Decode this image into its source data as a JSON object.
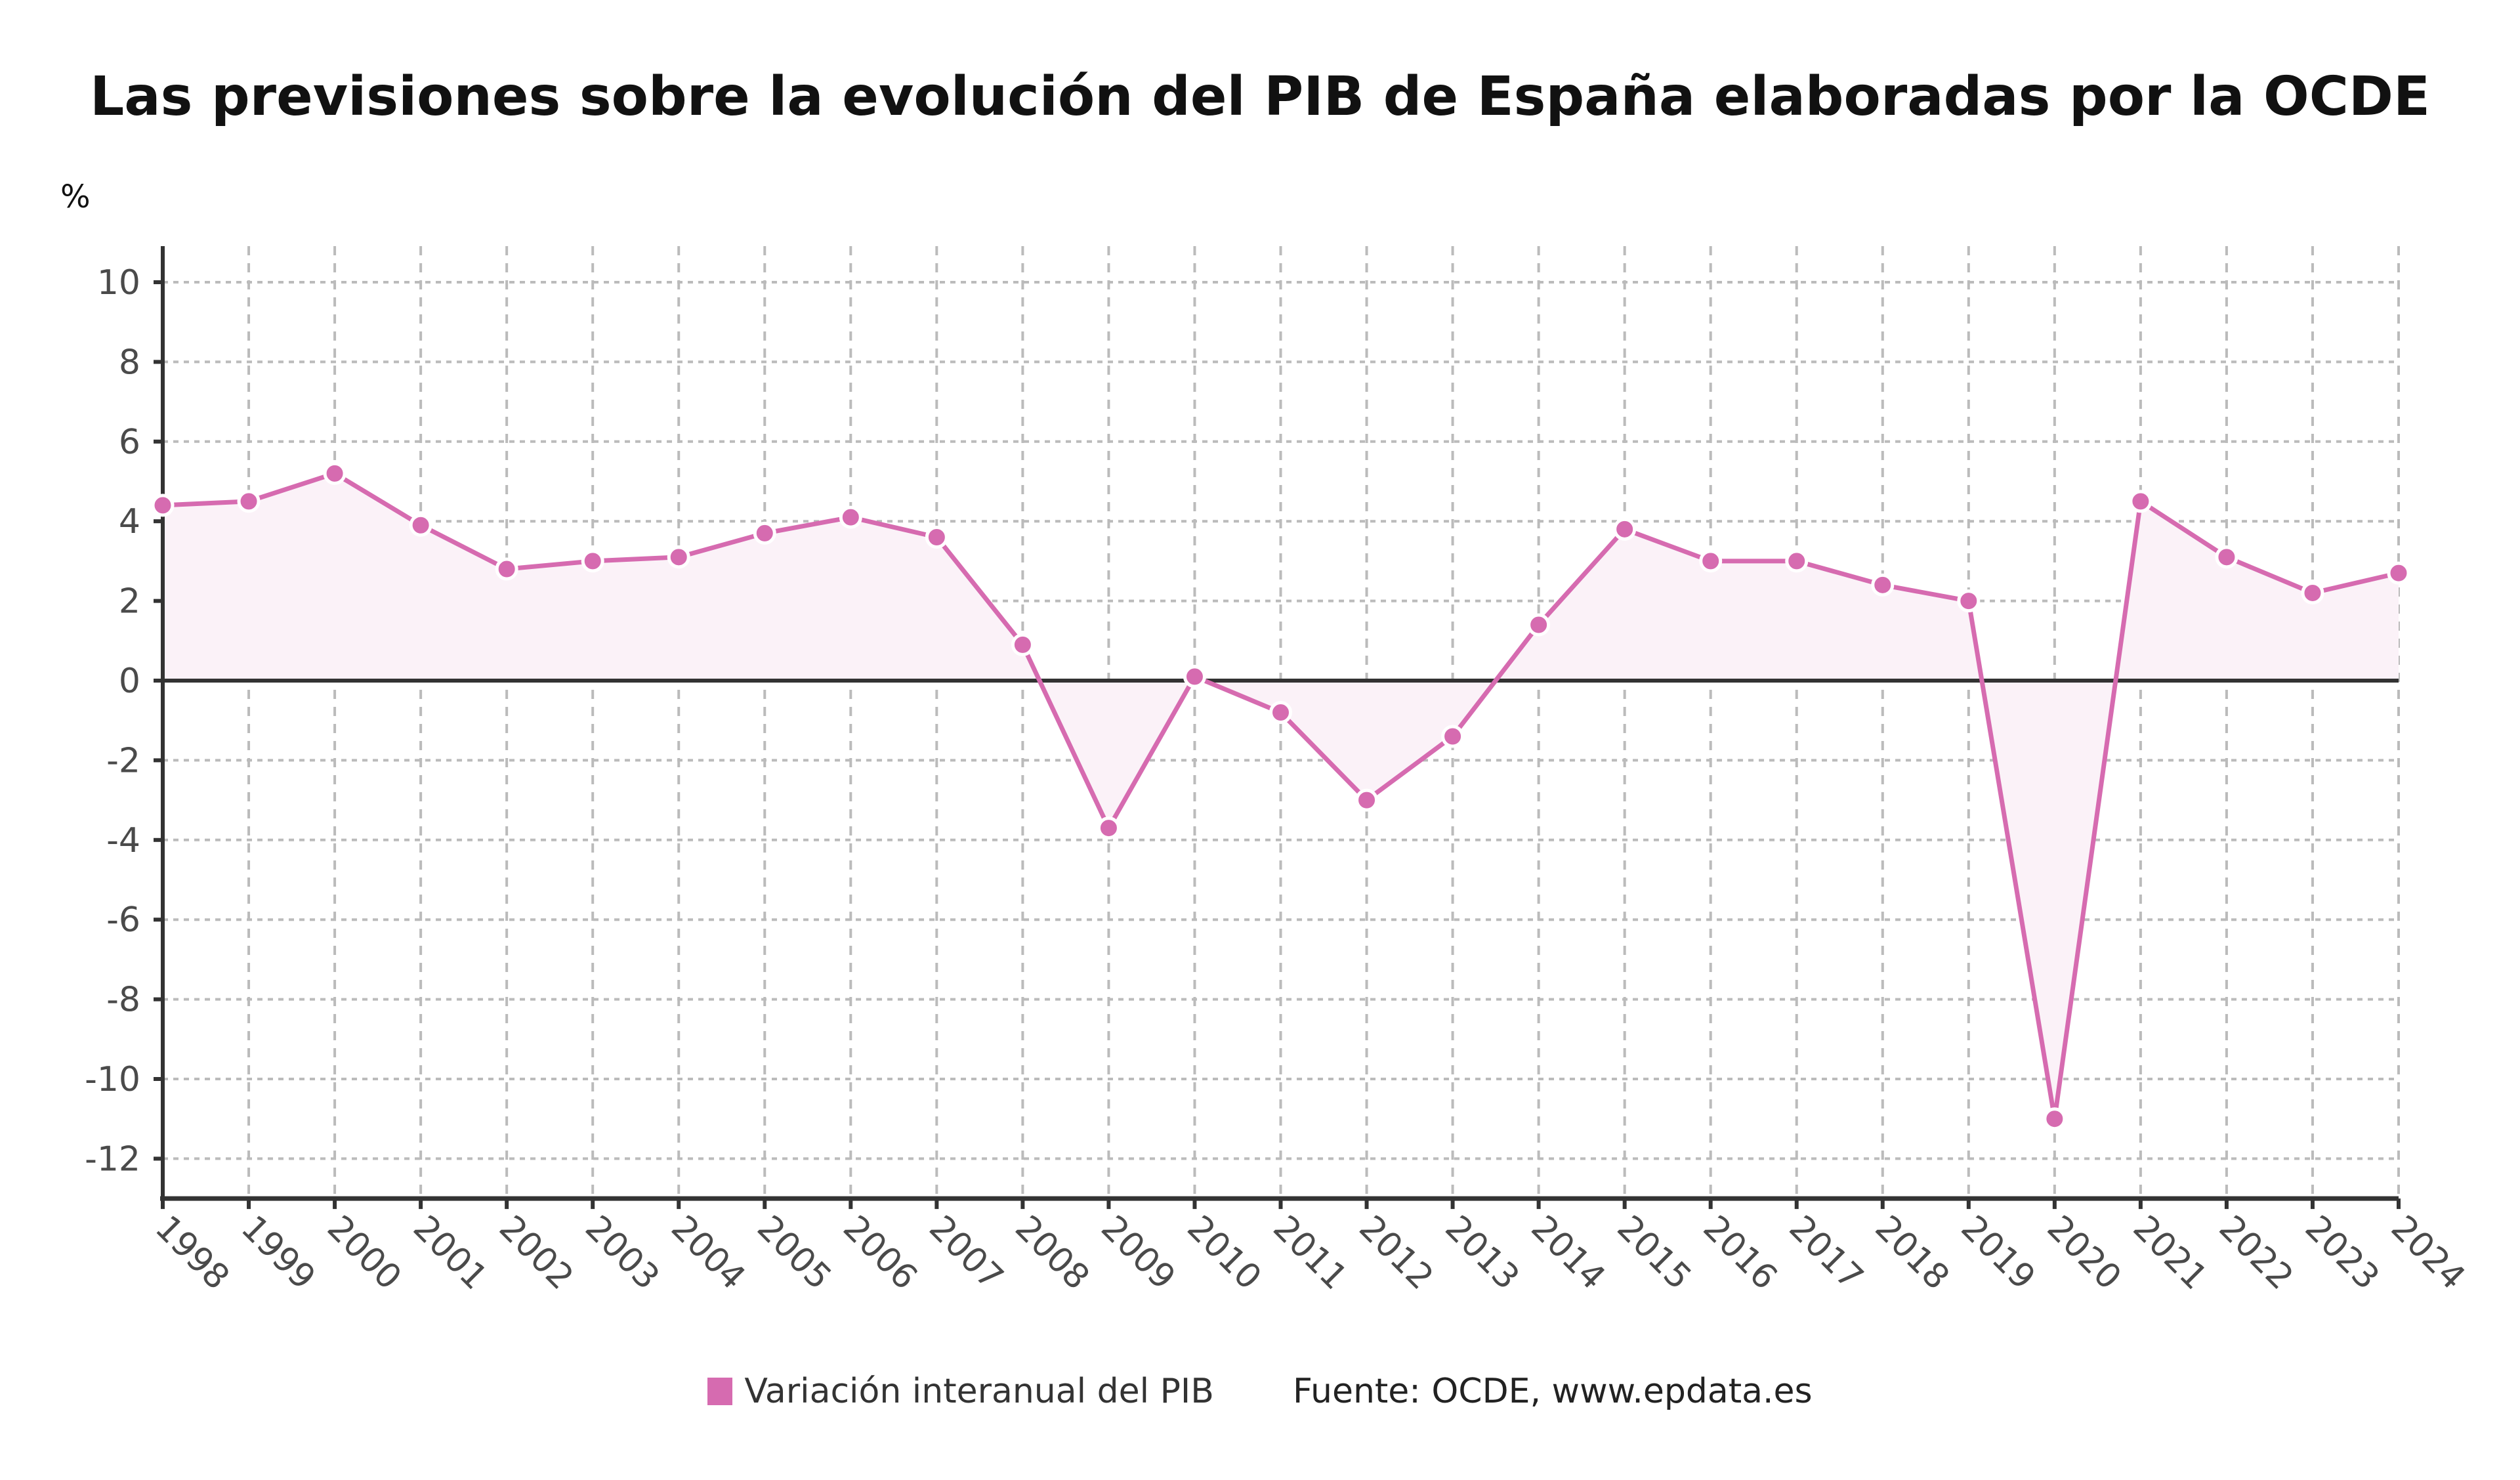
{
  "chart_data": {
    "type": "line",
    "title": "Las previsiones sobre la evolución del PIB de España elaboradas por la OCDE",
    "ylabel": "%",
    "xlabel": "",
    "ylim": [
      -13,
      11
    ],
    "yticks": [
      10,
      8,
      6,
      4,
      2,
      0,
      -2,
      -4,
      -6,
      -8,
      -10,
      -12
    ],
    "grid": true,
    "legend_position": "bottom-center",
    "x": [
      "1998",
      "1999",
      "2000",
      "2001",
      "2002",
      "2003",
      "2004",
      "2005",
      "2006",
      "2007",
      "2008",
      "2009",
      "2010",
      "2011",
      "2012",
      "2013",
      "2014",
      "2015",
      "2016",
      "2017",
      "2018",
      "2019",
      "2020",
      "2021",
      "2022",
      "2023",
      "2024"
    ],
    "series": [
      {
        "name": "Variación interanual del PIB",
        "color": "#d66bb0",
        "values": [
          4.4,
          4.5,
          5.2,
          3.9,
          2.8,
          3.0,
          3.1,
          3.7,
          4.1,
          3.6,
          0.9,
          -3.7,
          0.1,
          -0.8,
          -3.0,
          -1.4,
          1.4,
          3.8,
          3.0,
          3.0,
          2.4,
          2.0,
          -11.0,
          4.5,
          3.1,
          2.2,
          2.7
        ]
      }
    ]
  },
  "legend": {
    "label": "Variación interanual del PIB",
    "source": "Fuente: OCDE, www.epdata.es"
  },
  "colors": {
    "line": "#d66bb0",
    "fill": "#fbf2f8",
    "axis": "#333333",
    "grid": "#bbbbbb",
    "tick_text": "#4a4a4a"
  }
}
